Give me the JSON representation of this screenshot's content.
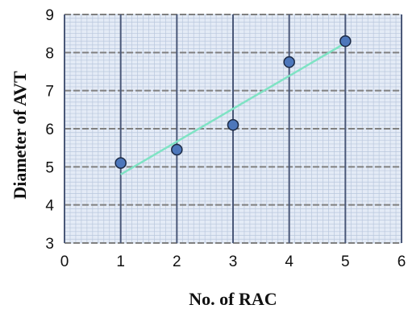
{
  "colors": {
    "plot_background": "#e4ebf6",
    "minor_grid": "#b9c7dd",
    "major_horizontal_grid": "#808080",
    "vertical_grid": "#4a5878",
    "trendline": "#7fe3c4",
    "marker_fill": "#4d77bb",
    "marker_stroke": "#1c2a44",
    "text": "#111111"
  },
  "chart_data": {
    "type": "scatter",
    "xlabel": "No. of RAC",
    "ylabel": "Diameter of AVT",
    "xlim": [
      0,
      6
    ],
    "ylim": [
      3,
      9
    ],
    "x_ticks": [
      "0",
      "1",
      "2",
      "3",
      "4",
      "5",
      "6"
    ],
    "y_ticks": [
      "3",
      "4",
      "5",
      "6",
      "7",
      "8",
      "9"
    ],
    "grid": true,
    "legend": "none",
    "series": [
      {
        "x": [
          1,
          2,
          3,
          4,
          5
        ],
        "y": [
          5.1,
          5.45,
          6.1,
          7.75,
          8.3
        ]
      }
    ],
    "trendline": {
      "type": "linear",
      "x": [
        1,
        5
      ],
      "y": [
        4.8,
        8.25
      ]
    }
  }
}
